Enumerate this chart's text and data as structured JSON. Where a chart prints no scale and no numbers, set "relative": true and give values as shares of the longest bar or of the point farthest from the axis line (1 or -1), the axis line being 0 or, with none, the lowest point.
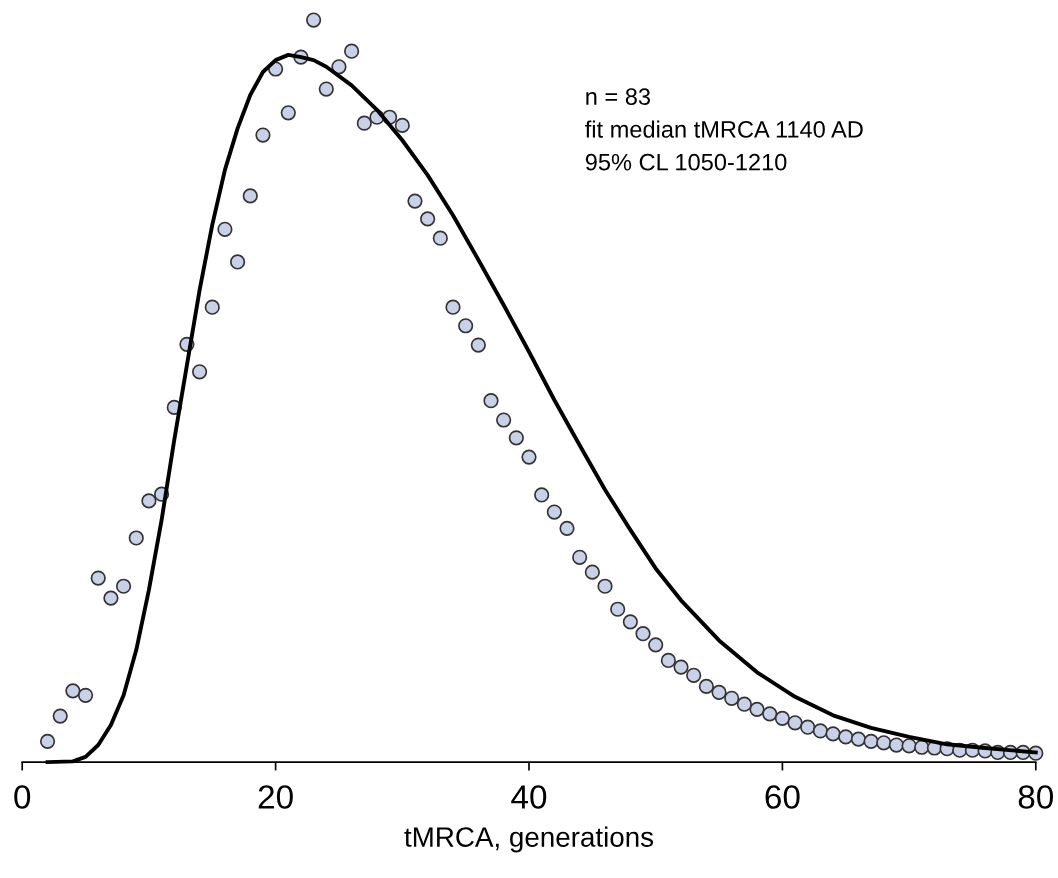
{
  "chart_data": {
    "type": "scatter",
    "relative": true,
    "xlabel": "tMRCA, generations",
    "xlim": [
      0,
      80
    ],
    "xticks": [
      0,
      20,
      40,
      60,
      80
    ],
    "grid": false,
    "legend": false,
    "annotations": [
      "n = 83",
      "fit median tMRCA 1140 AD",
      "95% CL 1050-1210"
    ],
    "series": [
      {
        "marker": "circle",
        "color": "#c9d1e8",
        "x": [
          2,
          3,
          4,
          5,
          6,
          7,
          8,
          9,
          10,
          11,
          12,
          13,
          14,
          15,
          16,
          17,
          18,
          19,
          20,
          21,
          22,
          23,
          24,
          25,
          26,
          27,
          28,
          29,
          30,
          31,
          32,
          33,
          34,
          35,
          36,
          37,
          38,
          39,
          40,
          41,
          42,
          43,
          44,
          45,
          46,
          47,
          48,
          49,
          50,
          51,
          52,
          53,
          54,
          55,
          56,
          57,
          58,
          59,
          60,
          61,
          62,
          63,
          64,
          65,
          66,
          67,
          68,
          69,
          70,
          71,
          72,
          73,
          74,
          75,
          76,
          77,
          78,
          79,
          80
        ],
        "values": [
          0.028,
          0.062,
          0.096,
          0.09,
          0.248,
          0.221,
          0.237,
          0.302,
          0.352,
          0.361,
          0.478,
          0.563,
          0.526,
          0.613,
          0.718,
          0.674,
          0.763,
          0.845,
          0.934,
          0.875,
          0.95,
          1,
          0.907,
          0.937,
          0.958,
          0.861,
          0.869,
          0.869,
          0.858,
          0.756,
          0.732,
          0.706,
          0.613,
          0.588,
          0.562,
          0.487,
          0.461,
          0.437,
          0.411,
          0.36,
          0.337,
          0.315,
          0.276,
          0.256,
          0.237,
          0.206,
          0.189,
          0.173,
          0.158,
          0.137,
          0.128,
          0.117,
          0.102,
          0.094,
          0.086,
          0.078,
          0.071,
          0.065,
          0.059,
          0.053,
          0.047,
          0.042,
          0.038,
          0.034,
          0.031,
          0.028,
          0.026,
          0.023,
          0.022,
          0.02,
          0.019,
          0.018,
          0.016,
          0.016,
          0.015,
          0.013,
          0.013,
          0.013,
          0.012
        ]
      },
      {
        "type": "line",
        "marker": "none",
        "line_style": "solid",
        "color": "#000000",
        "x": [
          2,
          4,
          5,
          6,
          7,
          8,
          9,
          10,
          11,
          12,
          13,
          14,
          15,
          16,
          17,
          18,
          19,
          20,
          21,
          22,
          23,
          24,
          26,
          28,
          30,
          32,
          34,
          36,
          38,
          40,
          42,
          44,
          46,
          48,
          50,
          52,
          55,
          58,
          61,
          64,
          67,
          70,
          73,
          76,
          80
        ],
        "values": [
          0,
          0.001,
          0.007,
          0.023,
          0.05,
          0.09,
          0.151,
          0.232,
          0.326,
          0.434,
          0.535,
          0.636,
          0.724,
          0.798,
          0.854,
          0.899,
          0.93,
          0.946,
          0.953,
          0.95,
          0.946,
          0.937,
          0.912,
          0.879,
          0.838,
          0.791,
          0.737,
          0.677,
          0.616,
          0.553,
          0.488,
          0.427,
          0.367,
          0.313,
          0.261,
          0.218,
          0.164,
          0.121,
          0.088,
          0.063,
          0.046,
          0.034,
          0.024,
          0.019,
          0.013
        ]
      }
    ]
  }
}
